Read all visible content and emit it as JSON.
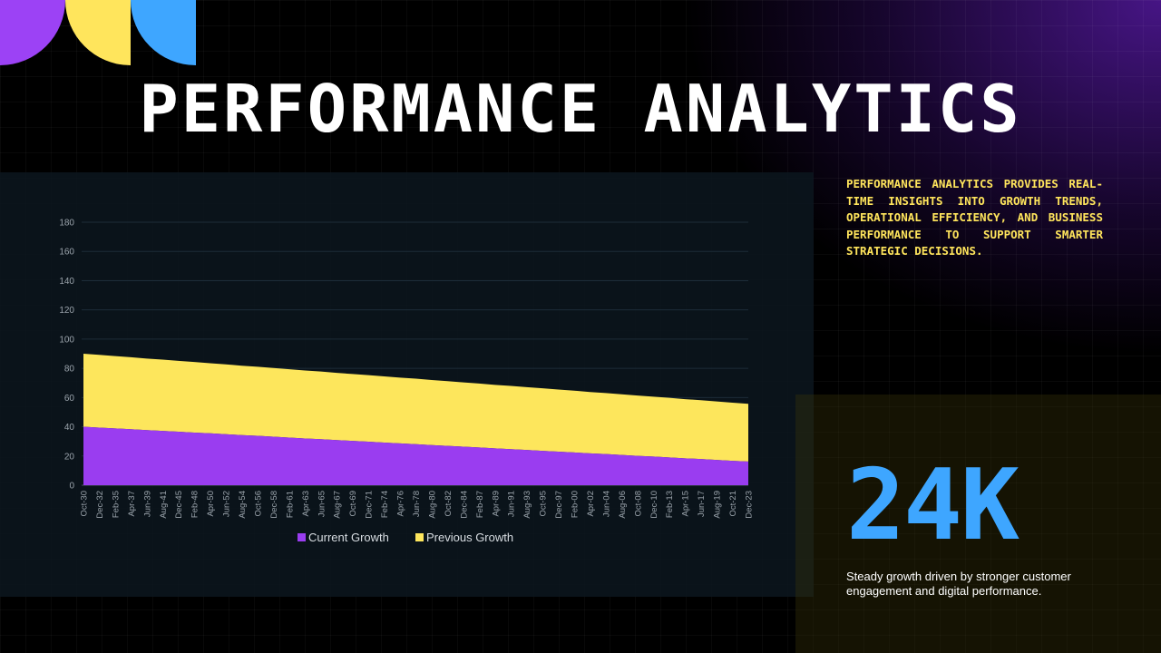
{
  "title": "PERFORMANCE ANALYTICS",
  "description": "PERFORMANCE ANALYTICS PROVIDES REAL-TIME INSIGHTS INTO GROWTH TRENDS, OPERATIONAL EFFICIENCY, AND BUSINESS PERFORMANCE TO SUPPORT SMARTER STRATEGIC DECISIONS.",
  "stat": {
    "value": "24K",
    "caption": "Steady growth driven by stronger customer engagement and digital performance."
  },
  "colors": {
    "purple": "#9c42f5",
    "yellow": "#ffe55c",
    "blue": "#3ea6ff",
    "current_series": "#9a3df0",
    "previous_series": "#fde65c"
  },
  "chart_data": {
    "type": "area",
    "stacked": true,
    "x": [
      "Oct-30",
      "Dec-32",
      "Feb-35",
      "Apr-37",
      "Jun-39",
      "Aug-41",
      "Dec-45",
      "Feb-48",
      "Apr-50",
      "Jun-52",
      "Aug-54",
      "Oct-56",
      "Dec-58",
      "Feb-61",
      "Apr-63",
      "Jun-65",
      "Aug-67",
      "Oct-69",
      "Dec-71",
      "Feb-74",
      "Apr-76",
      "Jun-78",
      "Aug-80",
      "Oct-82",
      "Dec-84",
      "Feb-87",
      "Apr-89",
      "Jun-91",
      "Aug-93",
      "Oct-95",
      "Dec-97",
      "Feb-00",
      "Apr-02",
      "Jun-04",
      "Aug-06",
      "Oct-08",
      "Dec-10",
      "Feb-13",
      "Apr-15",
      "Jun-17",
      "Aug-19",
      "Oct-21",
      "Dec-23"
    ],
    "series": [
      {
        "name": "Current Growth",
        "values": [
          40,
          39.4,
          38.9,
          38.3,
          37.7,
          37.2,
          36.6,
          36,
          35.5,
          34.9,
          34.3,
          33.8,
          33.2,
          32.6,
          32,
          31.5,
          30.9,
          30.3,
          29.8,
          29.2,
          28.6,
          28.1,
          27.5,
          26.9,
          26.4,
          25.8,
          25.2,
          24.7,
          24.1,
          23.5,
          23,
          22.4,
          21.8,
          21.3,
          20.7,
          20.1,
          19.6,
          19,
          18.4,
          17.9,
          17.3,
          16.7,
          16.2
        ]
      },
      {
        "name": "Previous Growth",
        "values": [
          50,
          49.8,
          49.5,
          49.3,
          49,
          48.8,
          48.5,
          48.3,
          48,
          47.8,
          47.5,
          47.3,
          47,
          46.8,
          46.5,
          46.3,
          46,
          45.8,
          45.5,
          45.3,
          45,
          44.8,
          44.5,
          44.3,
          44,
          43.8,
          43.5,
          43.3,
          43,
          42.8,
          42.5,
          42.3,
          42,
          41.8,
          41.5,
          41.3,
          41,
          40.8,
          40.5,
          40.3,
          40,
          39.8,
          39.5
        ]
      }
    ],
    "yticks": [
      0,
      20,
      40,
      60,
      80,
      100,
      120,
      140,
      160,
      180
    ],
    "ylim": [
      0,
      180
    ],
    "grid": true,
    "legend": "bottom-center",
    "xlabel": "",
    "ylabel": ""
  }
}
